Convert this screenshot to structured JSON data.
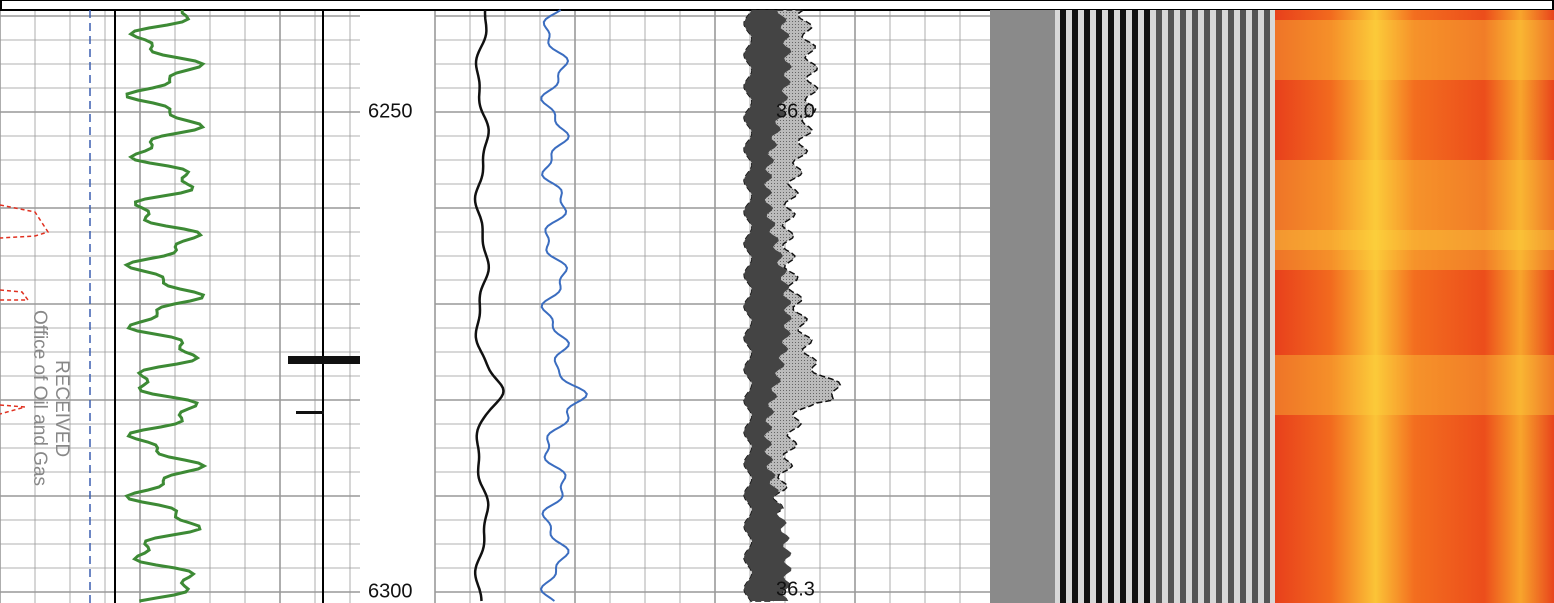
{
  "depth_track": {
    "labels": [
      "6250",
      "6300"
    ]
  },
  "annotations": [
    "36.0",
    "36.3"
  ],
  "stamp": {
    "line1": "RECEIVED",
    "line2": "Office of Oil and Gas"
  }
}
